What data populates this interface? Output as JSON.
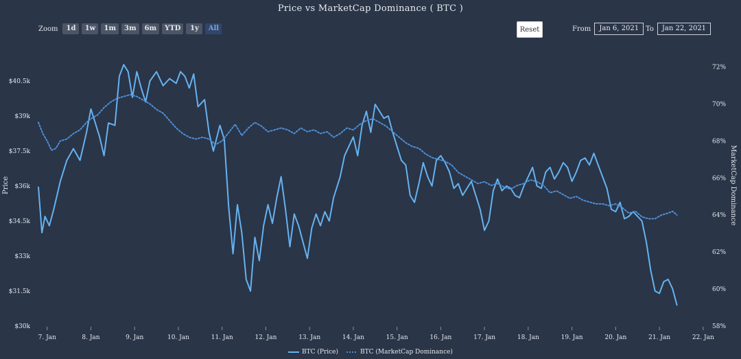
{
  "title": "Price vs MarketCap Dominance ( BTC )",
  "zoom": {
    "label": "Zoom",
    "buttons": [
      "1d",
      "1w",
      "1m",
      "3m",
      "6m",
      "YTD",
      "1y",
      "All"
    ],
    "active": "All"
  },
  "reset_label": "Reset",
  "range": {
    "from_label": "From",
    "from_value": "Jan 6, 2021",
    "to_label": "To",
    "to_value": "Jan 22, 2021"
  },
  "colors": {
    "background": "#2a3548",
    "price_line": "#66b3f0",
    "dominance_line": "#4f8fd6"
  },
  "chart_data": {
    "type": "line",
    "title": "Price vs MarketCap Dominance ( BTC )",
    "xlabel": "",
    "ylabel": "Price",
    "y2label": "MarketCap Dominance",
    "x_ticks": [
      "7. Jan",
      "8. Jan",
      "9. Jan",
      "10. Jan",
      "11. Jan",
      "12. Jan",
      "13. Jan",
      "14. Jan",
      "15. Jan",
      "16. Jan",
      "17. Jan",
      "18. Jan",
      "19. Jan",
      "20. Jan",
      "21. Jan",
      "22. Jan"
    ],
    "xlim": [
      6.8,
      22.05
    ],
    "y_ticks": [
      "$30k",
      "$31.5k",
      "$33k",
      "$34.5k",
      "$36k",
      "$37.5k",
      "$39k",
      "$40.5k"
    ],
    "ylim": [
      30000,
      41500
    ],
    "y2_ticks": [
      "58%",
      "60%",
      "62%",
      "64%",
      "66%",
      "68%",
      "70%",
      "72%"
    ],
    "y2lim": [
      58,
      72.5
    ],
    "legend_position": "bottom-center",
    "series": [
      {
        "name": "BTC (Price)",
        "axis": "left",
        "style": "solid",
        "points": [
          [
            6.8,
            35950
          ],
          [
            6.88,
            34000
          ],
          [
            6.95,
            34700
          ],
          [
            7.05,
            34300
          ],
          [
            7.15,
            35000
          ],
          [
            7.3,
            36200
          ],
          [
            7.45,
            37100
          ],
          [
            7.6,
            37600
          ],
          [
            7.75,
            37100
          ],
          [
            7.9,
            38300
          ],
          [
            8.0,
            39300
          ],
          [
            8.1,
            38700
          ],
          [
            8.2,
            38100
          ],
          [
            8.3,
            37300
          ],
          [
            8.4,
            38700
          ],
          [
            8.55,
            38600
          ],
          [
            8.65,
            40700
          ],
          [
            8.75,
            41200
          ],
          [
            8.85,
            40900
          ],
          [
            8.95,
            39800
          ],
          [
            9.05,
            40900
          ],
          [
            9.15,
            40200
          ],
          [
            9.25,
            39600
          ],
          [
            9.35,
            40500
          ],
          [
            9.5,
            40900
          ],
          [
            9.65,
            40300
          ],
          [
            9.8,
            40600
          ],
          [
            9.95,
            40400
          ],
          [
            10.05,
            40900
          ],
          [
            10.15,
            40700
          ],
          [
            10.25,
            40200
          ],
          [
            10.35,
            40800
          ],
          [
            10.45,
            39400
          ],
          [
            10.6,
            39700
          ],
          [
            10.7,
            38300
          ],
          [
            10.8,
            37500
          ],
          [
            10.95,
            38600
          ],
          [
            11.05,
            38000
          ],
          [
            11.15,
            35100
          ],
          [
            11.25,
            33100
          ],
          [
            11.35,
            35200
          ],
          [
            11.45,
            34000
          ],
          [
            11.55,
            32000
          ],
          [
            11.65,
            31500
          ],
          [
            11.75,
            33800
          ],
          [
            11.85,
            32800
          ],
          [
            11.95,
            34300
          ],
          [
            12.05,
            35200
          ],
          [
            12.15,
            34400
          ],
          [
            12.25,
            35500
          ],
          [
            12.35,
            36400
          ],
          [
            12.45,
            35000
          ],
          [
            12.55,
            33400
          ],
          [
            12.65,
            34800
          ],
          [
            12.75,
            34300
          ],
          [
            12.85,
            33600
          ],
          [
            12.95,
            32900
          ],
          [
            13.05,
            34200
          ],
          [
            13.15,
            34800
          ],
          [
            13.25,
            34300
          ],
          [
            13.35,
            34900
          ],
          [
            13.45,
            34500
          ],
          [
            13.55,
            35500
          ],
          [
            13.7,
            36400
          ],
          [
            13.8,
            37300
          ],
          [
            13.9,
            37700
          ],
          [
            14.0,
            38100
          ],
          [
            14.1,
            37300
          ],
          [
            14.2,
            38600
          ],
          [
            14.3,
            39200
          ],
          [
            14.4,
            38300
          ],
          [
            14.5,
            39500
          ],
          [
            14.6,
            39200
          ],
          [
            14.7,
            38900
          ],
          [
            14.8,
            39000
          ],
          [
            14.9,
            38300
          ],
          [
            15.0,
            37700
          ],
          [
            15.1,
            37100
          ],
          [
            15.2,
            36900
          ],
          [
            15.3,
            35600
          ],
          [
            15.4,
            35300
          ],
          [
            15.5,
            36100
          ],
          [
            15.6,
            37000
          ],
          [
            15.7,
            36400
          ],
          [
            15.8,
            36000
          ],
          [
            15.9,
            37100
          ],
          [
            16.0,
            37300
          ],
          [
            16.1,
            37000
          ],
          [
            16.2,
            36600
          ],
          [
            16.3,
            35900
          ],
          [
            16.4,
            36100
          ],
          [
            16.5,
            35600
          ],
          [
            16.6,
            35900
          ],
          [
            16.7,
            36200
          ],
          [
            16.8,
            35600
          ],
          [
            16.9,
            35000
          ],
          [
            17.0,
            34100
          ],
          [
            17.1,
            34500
          ],
          [
            17.2,
            35800
          ],
          [
            17.3,
            36300
          ],
          [
            17.4,
            35800
          ],
          [
            17.5,
            36000
          ],
          [
            17.6,
            35900
          ],
          [
            17.7,
            35600
          ],
          [
            17.8,
            35500
          ],
          [
            17.9,
            36000
          ],
          [
            18.0,
            36400
          ],
          [
            18.1,
            36800
          ],
          [
            18.2,
            36000
          ],
          [
            18.3,
            35900
          ],
          [
            18.4,
            36600
          ],
          [
            18.5,
            36800
          ],
          [
            18.6,
            36300
          ],
          [
            18.7,
            36600
          ],
          [
            18.8,
            37000
          ],
          [
            18.9,
            36800
          ],
          [
            19.0,
            36200
          ],
          [
            19.1,
            36600
          ],
          [
            19.2,
            37100
          ],
          [
            19.3,
            37200
          ],
          [
            19.4,
            36900
          ],
          [
            19.5,
            37400
          ],
          [
            19.6,
            36900
          ],
          [
            19.7,
            36400
          ],
          [
            19.8,
            35900
          ],
          [
            19.9,
            35000
          ],
          [
            20.0,
            34900
          ],
          [
            20.1,
            35300
          ],
          [
            20.2,
            34600
          ],
          [
            20.3,
            34700
          ],
          [
            20.4,
            34900
          ],
          [
            20.5,
            34700
          ],
          [
            20.6,
            34500
          ],
          [
            20.7,
            33600
          ],
          [
            20.8,
            32400
          ],
          [
            20.9,
            31500
          ],
          [
            21.0,
            31400
          ],
          [
            21.1,
            31900
          ],
          [
            21.2,
            32000
          ],
          [
            21.3,
            31600
          ],
          [
            21.4,
            30900
          ]
        ]
      },
      {
        "name": "BTC (MarketCap Dominance)",
        "axis": "right",
        "style": "dotted",
        "points": [
          [
            6.8,
            69.0
          ],
          [
            6.9,
            68.4
          ],
          [
            7.0,
            68.0
          ],
          [
            7.1,
            67.5
          ],
          [
            7.2,
            67.6
          ],
          [
            7.3,
            68.0
          ],
          [
            7.45,
            68.1
          ],
          [
            7.6,
            68.4
          ],
          [
            7.75,
            68.6
          ],
          [
            7.9,
            69.0
          ],
          [
            8.0,
            69.2
          ],
          [
            8.15,
            69.4
          ],
          [
            8.3,
            69.8
          ],
          [
            8.45,
            70.1
          ],
          [
            8.6,
            70.3
          ],
          [
            8.75,
            70.4
          ],
          [
            8.9,
            70.5
          ],
          [
            9.05,
            70.4
          ],
          [
            9.2,
            70.2
          ],
          [
            9.35,
            70.0
          ],
          [
            9.5,
            69.7
          ],
          [
            9.65,
            69.5
          ],
          [
            9.8,
            69.1
          ],
          [
            9.95,
            68.7
          ],
          [
            10.1,
            68.4
          ],
          [
            10.25,
            68.2
          ],
          [
            10.4,
            68.1
          ],
          [
            10.55,
            68.2
          ],
          [
            10.7,
            68.1
          ],
          [
            10.85,
            67.8
          ],
          [
            11.0,
            68.0
          ],
          [
            11.1,
            68.3
          ],
          [
            11.2,
            68.6
          ],
          [
            11.3,
            68.9
          ],
          [
            11.45,
            68.3
          ],
          [
            11.6,
            68.7
          ],
          [
            11.75,
            69.0
          ],
          [
            11.9,
            68.8
          ],
          [
            12.05,
            68.5
          ],
          [
            12.2,
            68.6
          ],
          [
            12.35,
            68.7
          ],
          [
            12.5,
            68.6
          ],
          [
            12.65,
            68.4
          ],
          [
            12.8,
            68.7
          ],
          [
            12.95,
            68.5
          ],
          [
            13.1,
            68.6
          ],
          [
            13.25,
            68.4
          ],
          [
            13.4,
            68.5
          ],
          [
            13.55,
            68.2
          ],
          [
            13.7,
            68.4
          ],
          [
            13.85,
            68.7
          ],
          [
            14.0,
            68.6
          ],
          [
            14.15,
            68.9
          ],
          [
            14.3,
            69.1
          ],
          [
            14.45,
            69.2
          ],
          [
            14.6,
            69.0
          ],
          [
            14.75,
            68.8
          ],
          [
            14.9,
            68.5
          ],
          [
            15.05,
            68.2
          ],
          [
            15.2,
            67.9
          ],
          [
            15.35,
            67.7
          ],
          [
            15.5,
            67.6
          ],
          [
            15.65,
            67.3
          ],
          [
            15.8,
            67.1
          ],
          [
            15.95,
            67.0
          ],
          [
            16.1,
            66.9
          ],
          [
            16.25,
            66.7
          ],
          [
            16.4,
            66.3
          ],
          [
            16.55,
            66.1
          ],
          [
            16.7,
            65.9
          ],
          [
            16.85,
            65.7
          ],
          [
            17.0,
            65.8
          ],
          [
            17.15,
            65.6
          ],
          [
            17.3,
            65.7
          ],
          [
            17.45,
            65.5
          ],
          [
            17.6,
            65.4
          ],
          [
            17.75,
            65.6
          ],
          [
            17.9,
            65.7
          ],
          [
            18.05,
            65.9
          ],
          [
            18.2,
            65.8
          ],
          [
            18.35,
            65.6
          ],
          [
            18.5,
            65.2
          ],
          [
            18.65,
            65.3
          ],
          [
            18.8,
            65.1
          ],
          [
            18.95,
            64.9
          ],
          [
            19.1,
            65.0
          ],
          [
            19.25,
            64.8
          ],
          [
            19.4,
            64.7
          ],
          [
            19.55,
            64.6
          ],
          [
            19.7,
            64.6
          ],
          [
            19.85,
            64.5
          ],
          [
            20.0,
            64.6
          ],
          [
            20.15,
            64.4
          ],
          [
            20.3,
            64.1
          ],
          [
            20.45,
            64.2
          ],
          [
            20.6,
            63.9
          ],
          [
            20.75,
            63.8
          ],
          [
            20.9,
            63.8
          ],
          [
            21.05,
            64.0
          ],
          [
            21.2,
            64.1
          ],
          [
            21.3,
            64.2
          ],
          [
            21.4,
            64.0
          ]
        ]
      }
    ]
  },
  "legend": [
    {
      "label": "BTC (Price)",
      "style": "solid"
    },
    {
      "label": "BTC (MarketCap Dominance)",
      "style": "dotted"
    }
  ]
}
